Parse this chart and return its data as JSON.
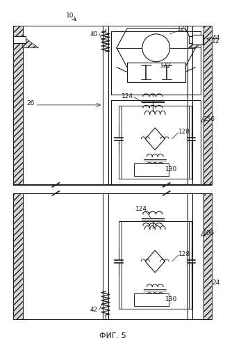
{
  "bg_color": "#ffffff",
  "line_color": "#1a1a1a",
  "fig_width": 3.24,
  "fig_height": 4.99,
  "dpi": 100,
  "title": "ФИГ. 5"
}
